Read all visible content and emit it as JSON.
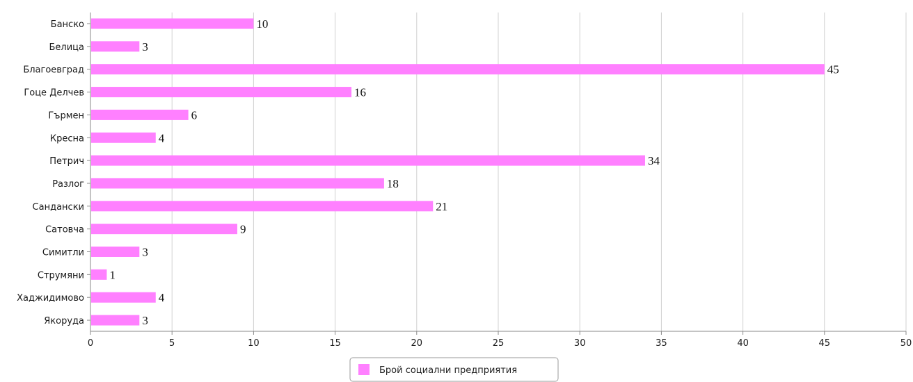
{
  "chart_data": {
    "type": "bar",
    "orientation": "horizontal",
    "categories": [
      "Банско",
      "Белица",
      "Благоевград",
      "Гоце Делчев",
      "Гърмен",
      "Кресна",
      "Петрич",
      "Разлог",
      "Сандански",
      "Сатовча",
      "Симитли",
      "Струмяни",
      "Хаджидимово",
      "Якоруда"
    ],
    "series": [
      {
        "name": "Брой социални предприятия",
        "values": [
          10,
          3,
          45,
          16,
          6,
          4,
          34,
          18,
          21,
          9,
          3,
          1,
          4,
          3
        ],
        "color": "#ff80ff"
      }
    ],
    "xlim": [
      0,
      50
    ],
    "x_ticks": [
      "0",
      "5",
      "10",
      "15",
      "20",
      "25",
      "30",
      "35",
      "40",
      "45",
      "50"
    ],
    "grid": "vertical",
    "legend_position": "bottom-center",
    "data_labels": true
  }
}
